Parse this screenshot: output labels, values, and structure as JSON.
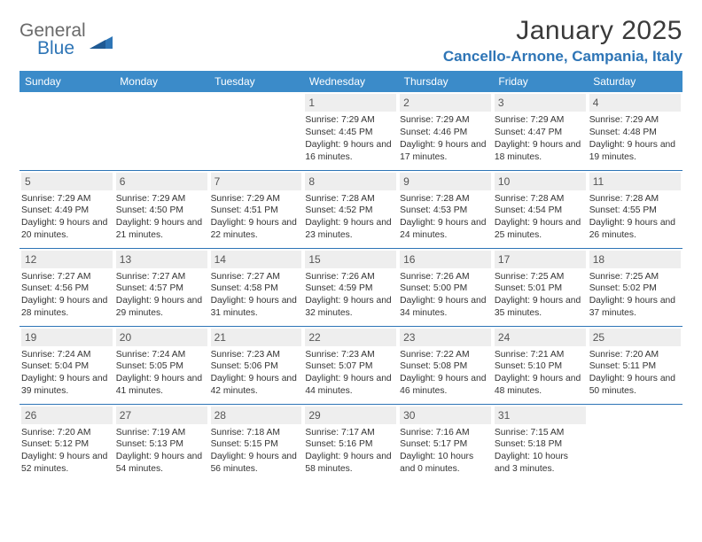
{
  "logo": {
    "general": "General",
    "blue": "Blue"
  },
  "title": "January 2025",
  "location": "Cancello-Arnone, Campania, Italy",
  "colors": {
    "header_bg": "#3b8bc9",
    "header_text": "#ffffff",
    "accent": "#2e75b6",
    "daynum_bg": "#eeeeee",
    "text": "#333333",
    "logo_gray": "#6a6a6a"
  },
  "weekdays": [
    "Sunday",
    "Monday",
    "Tuesday",
    "Wednesday",
    "Thursday",
    "Friday",
    "Saturday"
  ],
  "weeks": [
    [
      {
        "n": "",
        "sr": "",
        "ss": "",
        "dl": ""
      },
      {
        "n": "",
        "sr": "",
        "ss": "",
        "dl": ""
      },
      {
        "n": "",
        "sr": "",
        "ss": "",
        "dl": ""
      },
      {
        "n": "1",
        "sr": "Sunrise: 7:29 AM",
        "ss": "Sunset: 4:45 PM",
        "dl": "Daylight: 9 hours and 16 minutes."
      },
      {
        "n": "2",
        "sr": "Sunrise: 7:29 AM",
        "ss": "Sunset: 4:46 PM",
        "dl": "Daylight: 9 hours and 17 minutes."
      },
      {
        "n": "3",
        "sr": "Sunrise: 7:29 AM",
        "ss": "Sunset: 4:47 PM",
        "dl": "Daylight: 9 hours and 18 minutes."
      },
      {
        "n": "4",
        "sr": "Sunrise: 7:29 AM",
        "ss": "Sunset: 4:48 PM",
        "dl": "Daylight: 9 hours and 19 minutes."
      }
    ],
    [
      {
        "n": "5",
        "sr": "Sunrise: 7:29 AM",
        "ss": "Sunset: 4:49 PM",
        "dl": "Daylight: 9 hours and 20 minutes."
      },
      {
        "n": "6",
        "sr": "Sunrise: 7:29 AM",
        "ss": "Sunset: 4:50 PM",
        "dl": "Daylight: 9 hours and 21 minutes."
      },
      {
        "n": "7",
        "sr": "Sunrise: 7:29 AM",
        "ss": "Sunset: 4:51 PM",
        "dl": "Daylight: 9 hours and 22 minutes."
      },
      {
        "n": "8",
        "sr": "Sunrise: 7:28 AM",
        "ss": "Sunset: 4:52 PM",
        "dl": "Daylight: 9 hours and 23 minutes."
      },
      {
        "n": "9",
        "sr": "Sunrise: 7:28 AM",
        "ss": "Sunset: 4:53 PM",
        "dl": "Daylight: 9 hours and 24 minutes."
      },
      {
        "n": "10",
        "sr": "Sunrise: 7:28 AM",
        "ss": "Sunset: 4:54 PM",
        "dl": "Daylight: 9 hours and 25 minutes."
      },
      {
        "n": "11",
        "sr": "Sunrise: 7:28 AM",
        "ss": "Sunset: 4:55 PM",
        "dl": "Daylight: 9 hours and 26 minutes."
      }
    ],
    [
      {
        "n": "12",
        "sr": "Sunrise: 7:27 AM",
        "ss": "Sunset: 4:56 PM",
        "dl": "Daylight: 9 hours and 28 minutes."
      },
      {
        "n": "13",
        "sr": "Sunrise: 7:27 AM",
        "ss": "Sunset: 4:57 PM",
        "dl": "Daylight: 9 hours and 29 minutes."
      },
      {
        "n": "14",
        "sr": "Sunrise: 7:27 AM",
        "ss": "Sunset: 4:58 PM",
        "dl": "Daylight: 9 hours and 31 minutes."
      },
      {
        "n": "15",
        "sr": "Sunrise: 7:26 AM",
        "ss": "Sunset: 4:59 PM",
        "dl": "Daylight: 9 hours and 32 minutes."
      },
      {
        "n": "16",
        "sr": "Sunrise: 7:26 AM",
        "ss": "Sunset: 5:00 PM",
        "dl": "Daylight: 9 hours and 34 minutes."
      },
      {
        "n": "17",
        "sr": "Sunrise: 7:25 AM",
        "ss": "Sunset: 5:01 PM",
        "dl": "Daylight: 9 hours and 35 minutes."
      },
      {
        "n": "18",
        "sr": "Sunrise: 7:25 AM",
        "ss": "Sunset: 5:02 PM",
        "dl": "Daylight: 9 hours and 37 minutes."
      }
    ],
    [
      {
        "n": "19",
        "sr": "Sunrise: 7:24 AM",
        "ss": "Sunset: 5:04 PM",
        "dl": "Daylight: 9 hours and 39 minutes."
      },
      {
        "n": "20",
        "sr": "Sunrise: 7:24 AM",
        "ss": "Sunset: 5:05 PM",
        "dl": "Daylight: 9 hours and 41 minutes."
      },
      {
        "n": "21",
        "sr": "Sunrise: 7:23 AM",
        "ss": "Sunset: 5:06 PM",
        "dl": "Daylight: 9 hours and 42 minutes."
      },
      {
        "n": "22",
        "sr": "Sunrise: 7:23 AM",
        "ss": "Sunset: 5:07 PM",
        "dl": "Daylight: 9 hours and 44 minutes."
      },
      {
        "n": "23",
        "sr": "Sunrise: 7:22 AM",
        "ss": "Sunset: 5:08 PM",
        "dl": "Daylight: 9 hours and 46 minutes."
      },
      {
        "n": "24",
        "sr": "Sunrise: 7:21 AM",
        "ss": "Sunset: 5:10 PM",
        "dl": "Daylight: 9 hours and 48 minutes."
      },
      {
        "n": "25",
        "sr": "Sunrise: 7:20 AM",
        "ss": "Sunset: 5:11 PM",
        "dl": "Daylight: 9 hours and 50 minutes."
      }
    ],
    [
      {
        "n": "26",
        "sr": "Sunrise: 7:20 AM",
        "ss": "Sunset: 5:12 PM",
        "dl": "Daylight: 9 hours and 52 minutes."
      },
      {
        "n": "27",
        "sr": "Sunrise: 7:19 AM",
        "ss": "Sunset: 5:13 PM",
        "dl": "Daylight: 9 hours and 54 minutes."
      },
      {
        "n": "28",
        "sr": "Sunrise: 7:18 AM",
        "ss": "Sunset: 5:15 PM",
        "dl": "Daylight: 9 hours and 56 minutes."
      },
      {
        "n": "29",
        "sr": "Sunrise: 7:17 AM",
        "ss": "Sunset: 5:16 PM",
        "dl": "Daylight: 9 hours and 58 minutes."
      },
      {
        "n": "30",
        "sr": "Sunrise: 7:16 AM",
        "ss": "Sunset: 5:17 PM",
        "dl": "Daylight: 10 hours and 0 minutes."
      },
      {
        "n": "31",
        "sr": "Sunrise: 7:15 AM",
        "ss": "Sunset: 5:18 PM",
        "dl": "Daylight: 10 hours and 3 minutes."
      },
      {
        "n": "",
        "sr": "",
        "ss": "",
        "dl": ""
      }
    ]
  ]
}
